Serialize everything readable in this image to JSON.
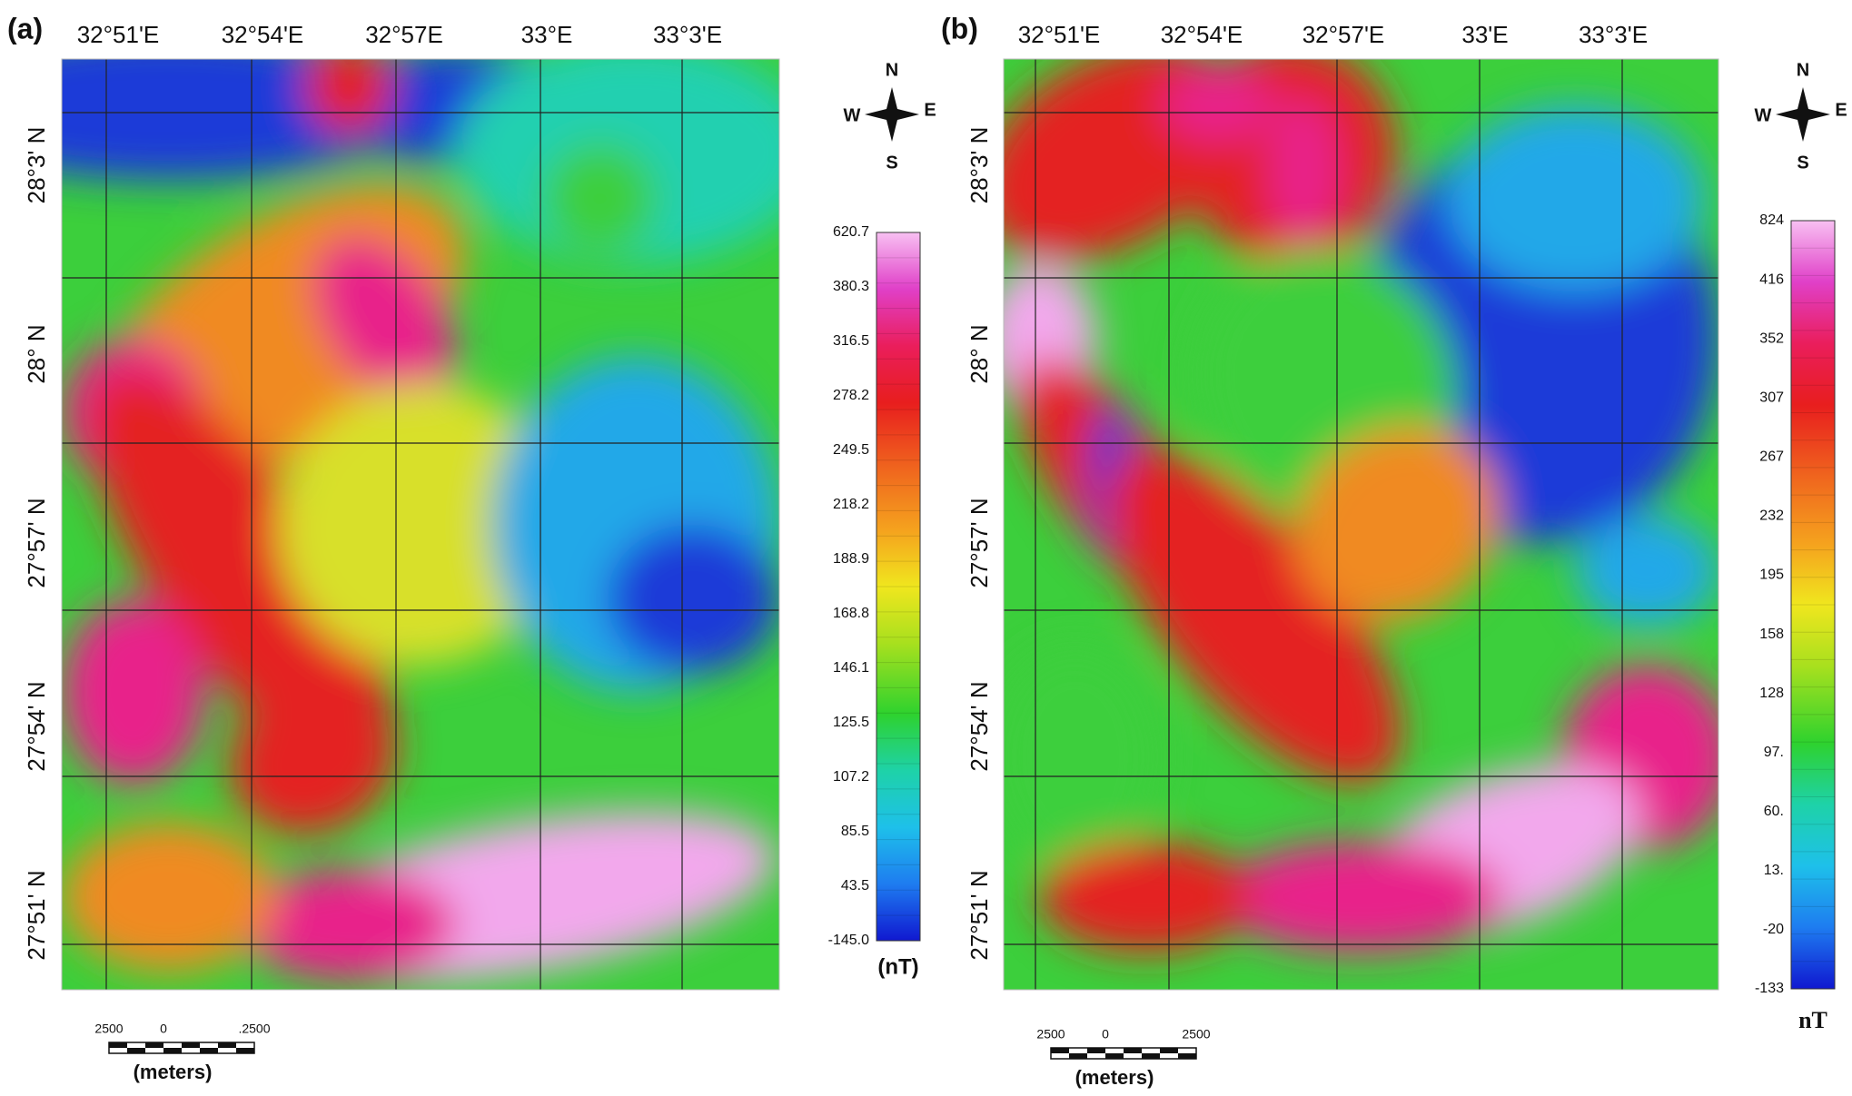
{
  "panels": [
    {
      "label": "(a)",
      "lon_labels": [
        "32°51'E",
        "32°54'E",
        "32°57E",
        "33°E",
        "33°3'E"
      ],
      "lat_labels": [
        "28°3' N",
        "28° N",
        "27°57' N",
        "27°54' N",
        "27°51' N"
      ],
      "compass": {
        "n": "N",
        "w": "W",
        "e": "E",
        "s": "S"
      },
      "colorbar": {
        "labels": [
          "620.7",
          "380.3",
          "316.5",
          "278.2",
          "249.5",
          "218.2",
          "188.9",
          "168.8",
          "146.1",
          "125.5",
          "107.2",
          "85.5",
          "43.5",
          "-145.0"
        ],
        "unit": "(nT)"
      },
      "scale_bar": {
        "labels": [
          "2500",
          "0",
          ".2500"
        ],
        "unit": "(meters)"
      }
    },
    {
      "label": "(b)",
      "lon_labels": [
        "32°51'E",
        "32°54'E",
        "32°57'E",
        "33'E",
        "33°3'E"
      ],
      "lat_labels": [
        "28°3' N",
        "28° N",
        "27°57' N",
        "27°54' N",
        "27°51' N"
      ],
      "compass": {
        "n": "N",
        "w": "W",
        "e": "E",
        "s": "S"
      },
      "colorbar": {
        "labels": [
          "824",
          "416",
          "352",
          "307",
          "267",
          "232",
          "195",
          "158",
          "128",
          "97.",
          "60.",
          "13.",
          "-20",
          "-133"
        ],
        "unit": "nT"
      },
      "scale_bar": {
        "labels": [
          "2500",
          "0",
          "2500"
        ],
        "unit": "(meters)"
      }
    }
  ]
}
